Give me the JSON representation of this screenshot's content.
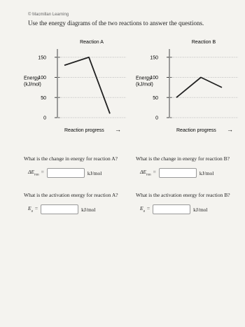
{
  "header": {
    "copyright": "© Macmillan Learning",
    "instruction": "Use the energy diagrams of the two reactions to answer the questions."
  },
  "diagrams": [
    {
      "title": "Reaction A",
      "y_label_1": "Energy",
      "y_label_2": "(kJ/mol)",
      "x_label": "Reaction progress",
      "arrow": "→",
      "ylim": [
        0,
        160
      ],
      "yticks": [
        0,
        50,
        100,
        150
      ],
      "energies": [
        130,
        150,
        10
      ]
    },
    {
      "title": "Reaction B",
      "y_label_1": "Energy",
      "y_label_2": "(kJ/mol)",
      "x_label": "Reaction progress",
      "arrow": "→",
      "ylim": [
        0,
        160
      ],
      "yticks": [
        0,
        50,
        100,
        150
      ],
      "energies": [
        50,
        100,
        75
      ]
    }
  ],
  "questions": [
    {
      "text": "What is the change in energy for reaction A?",
      "symbol": "ΔE",
      "subscript": "rxn",
      "equals": "=",
      "unit": "kJ/mol"
    },
    {
      "text": "What is the activation energy for reaction A?",
      "symbol": "E",
      "subscript": "a",
      "equals": "=",
      "unit": "kJ/mol"
    },
    {
      "text": "What is the change in energy for reaction B?",
      "symbol": "ΔE",
      "subscript": "rxn",
      "equals": "=",
      "unit": "kJ/mol"
    },
    {
      "text": "What is the activation energy for reaction B?",
      "symbol": "E",
      "subscript": "a",
      "equals": "=",
      "unit": "kJ/mol"
    }
  ]
}
